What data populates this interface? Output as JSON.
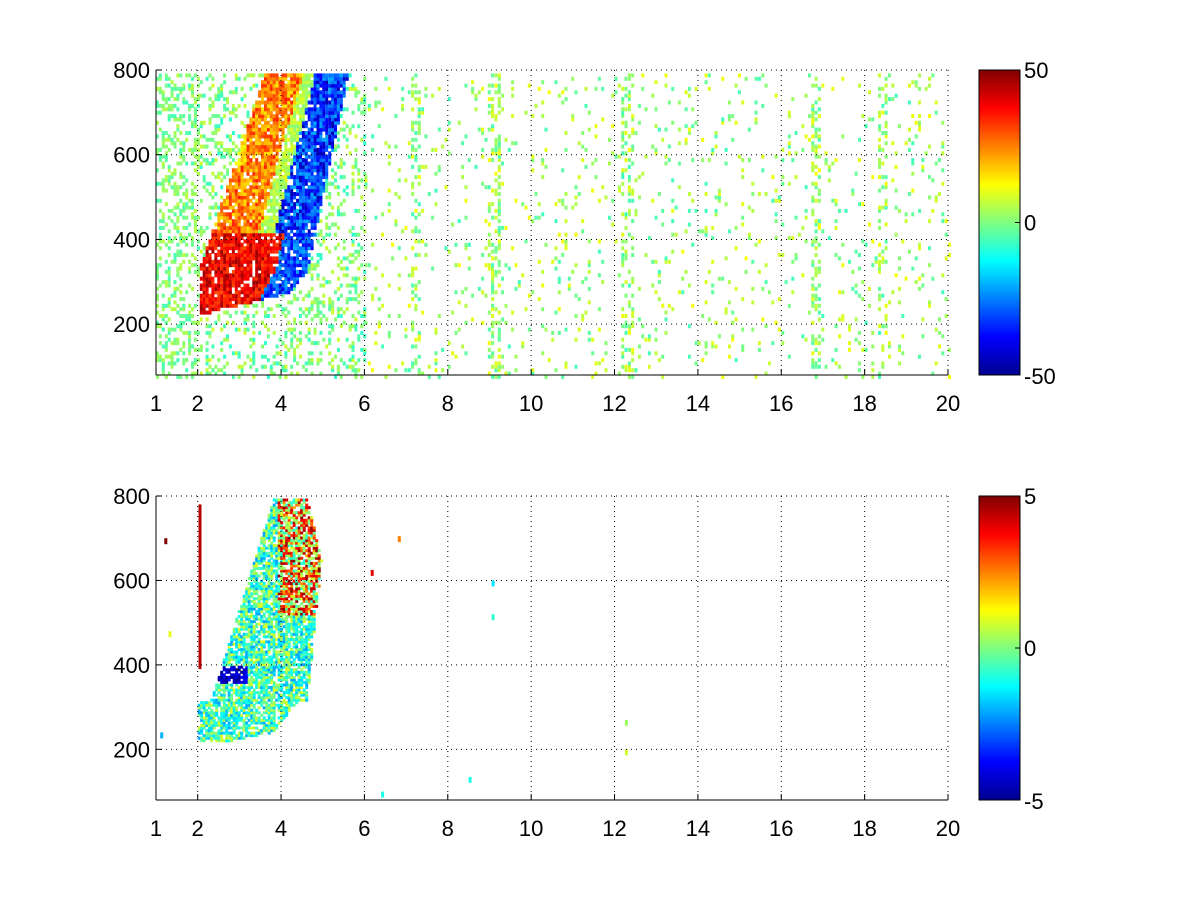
{
  "figure": {
    "background": "#ffffff",
    "axis_color": "#000000"
  },
  "chart_data": [
    {
      "type": "heatmap",
      "title": "",
      "xlabel": "",
      "ylabel": "",
      "x_scale": "linear",
      "xlim": [
        1,
        20
      ],
      "ylim": [
        80,
        800
      ],
      "xticks": [
        1,
        2,
        4,
        6,
        8,
        10,
        12,
        14,
        16,
        18,
        20
      ],
      "xtick_labels": [
        "1",
        "2",
        "4",
        "6",
        "8",
        "10",
        "12",
        "14",
        "16",
        "18",
        "20"
      ],
      "yticks": [
        200,
        400,
        600,
        800
      ],
      "ytick_labels": [
        "200",
        "400",
        "600",
        "800"
      ],
      "grid": true,
      "grid_style": "dotted",
      "colormap": "jet",
      "clim": [
        -50,
        50
      ],
      "colorbar_ticks": [
        -50,
        0,
        50
      ],
      "colorbar_labels": [
        "-50",
        "0",
        "50"
      ],
      "colorbar_position": "right",
      "features": [
        {
          "region": "dense cluster",
          "x_range": [
            1.8,
            5.5
          ],
          "y_range": [
            220,
            800
          ],
          "values": "positive (+20 to +50) lower-left, negative (-50 to -20) upper-right"
        },
        {
          "region": "sparse speckle",
          "x_range": [
            5.5,
            20
          ],
          "y_range": [
            80,
            800
          ],
          "values": "near zero (-10 to +10)"
        }
      ]
    },
    {
      "type": "heatmap",
      "title": "",
      "xlabel": "",
      "ylabel": "",
      "x_scale": "linear",
      "xlim": [
        1,
        20
      ],
      "ylim": [
        80,
        800
      ],
      "xticks": [
        1,
        2,
        4,
        6,
        8,
        10,
        12,
        14,
        16,
        18,
        20
      ],
      "xtick_labels": [
        "1",
        "2",
        "4",
        "6",
        "8",
        "10",
        "12",
        "14",
        "16",
        "18",
        "20"
      ],
      "yticks": [
        200,
        400,
        600,
        800
      ],
      "ytick_labels": [
        "200",
        "400",
        "600",
        "800"
      ],
      "grid": true,
      "grid_style": "dotted",
      "colormap": "jet",
      "clim": [
        -5,
        5
      ],
      "colorbar_ticks": [
        -5,
        0,
        5
      ],
      "colorbar_labels": [
        "-5",
        "0",
        "5"
      ],
      "colorbar_position": "right",
      "features": [
        {
          "region": "dense cluster",
          "x_range": [
            2.0,
            5.5
          ],
          "y_range": [
            220,
            800
          ],
          "values": "mostly -2 to +1, some +3 to +5 near top, -5 near x=2.5 y=380"
        },
        {
          "region": "isolated points",
          "x_range": [
            6,
            12.5
          ],
          "y_range": [
            130,
            700
          ],
          "values": "near zero"
        }
      ]
    }
  ]
}
